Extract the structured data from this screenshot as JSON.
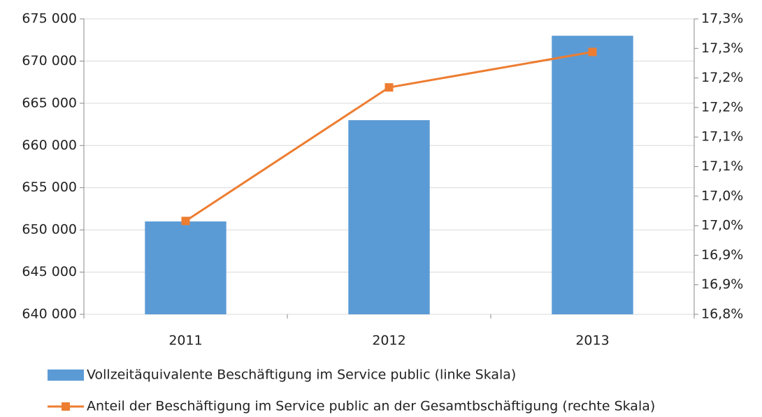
{
  "chart_data": {
    "type": "bar",
    "categories": [
      "2011",
      "2012",
      "2013"
    ],
    "series": [
      {
        "name": "Vollzeitäquivalente Beschäftigung im Service public (linke Skala)",
        "type": "bar",
        "color": "#5b9bd5",
        "values": [
          651000,
          663000,
          673000
        ]
      },
      {
        "name": "Anteil der Beschäftigung im Service public an der Gesamtbschäftigung (rechte Skala)",
        "type": "line",
        "axis": "y2",
        "color": "#ed7d31",
        "values": [
          16.958,
          17.184,
          17.244
        ]
      }
    ],
    "ylim": [
      640000,
      675000
    ],
    "yticks": [
      {
        "value": 640000,
        "label": "640 000"
      },
      {
        "value": 645000,
        "label": "645 000"
      },
      {
        "value": 650000,
        "label": "650 000"
      },
      {
        "value": 655000,
        "label": "655 000"
      },
      {
        "value": 660000,
        "label": "660 000"
      },
      {
        "value": 665000,
        "label": "665 000"
      },
      {
        "value": 670000,
        "label": "670 000"
      },
      {
        "value": 675000,
        "label": "675 000"
      }
    ],
    "y2lim": [
      16.8,
      17.3
    ],
    "y2ticks": [
      {
        "value": 16.8,
        "label": "16,8%"
      },
      {
        "value": 16.85,
        "label": "16,9%"
      },
      {
        "value": 16.9,
        "label": "16,9%"
      },
      {
        "value": 16.95,
        "label": "17,0%"
      },
      {
        "value": 17.0,
        "label": "17,0%"
      },
      {
        "value": 17.05,
        "label": "17,1%"
      },
      {
        "value": 17.1,
        "label": "17,1%"
      },
      {
        "value": 17.15,
        "label": "17,2%"
      },
      {
        "value": 17.2,
        "label": "17,2%"
      },
      {
        "value": 17.25,
        "label": "17,3%"
      },
      {
        "value": 17.3,
        "label": "17,3%"
      }
    ],
    "grid": true,
    "legend": "bottom"
  }
}
